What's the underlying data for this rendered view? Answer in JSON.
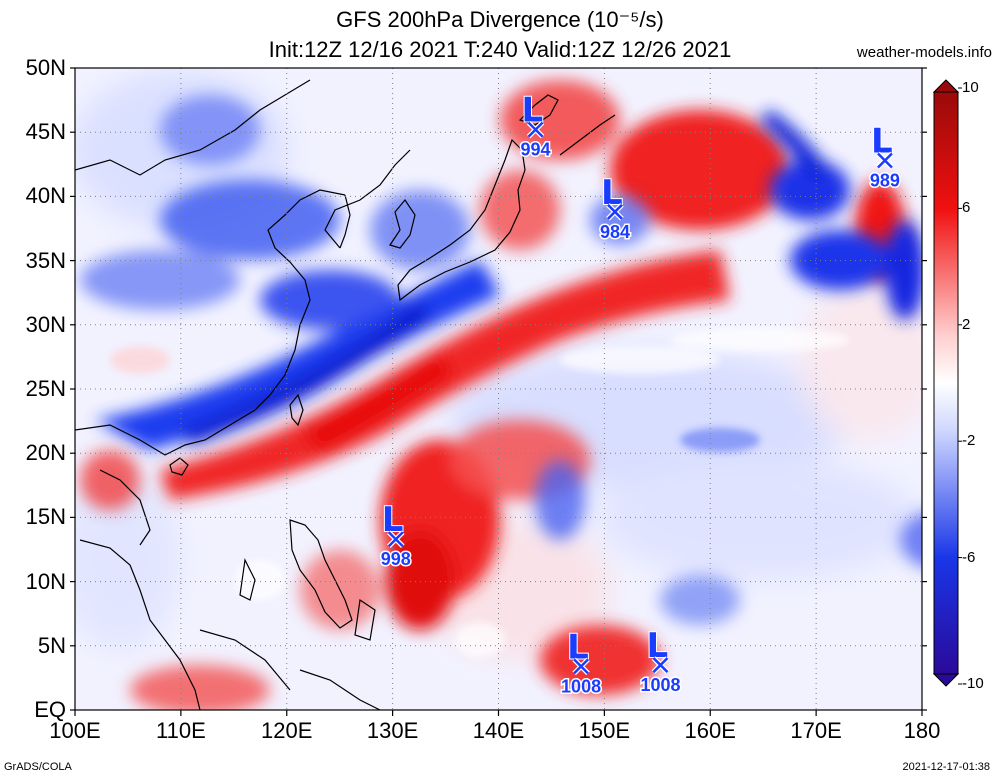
{
  "title": {
    "line1": "GFS 200hPa Divergence (10⁻⁵/s)",
    "line2": "Init:12Z 12/16 2021 T:240 Valid:12Z 12/26 2021"
  },
  "site": "weather-models.info",
  "footer": {
    "left": "GrADS/COLA",
    "right": "2021-12-17-01:38"
  },
  "map": {
    "lon_range": [
      100,
      180
    ],
    "lat_range": [
      0,
      50
    ],
    "lat_labels": [
      "EQ",
      "5N",
      "10N",
      "15N",
      "20N",
      "25N",
      "30N",
      "35N",
      "40N",
      "45N",
      "50N"
    ],
    "lon_labels": [
      "100E",
      "110E",
      "120E",
      "130E",
      "140E",
      "150E",
      "160E",
      "170E",
      "180"
    ],
    "gridlines": true
  },
  "colorbar": {
    "range": [
      -10,
      10
    ],
    "ticks": [
      {
        "value": 10,
        "label": "10"
      },
      {
        "value": 6,
        "label": "6"
      },
      {
        "value": 2,
        "label": "2"
      },
      {
        "value": -2,
        "label": "-2"
      },
      {
        "value": -6,
        "label": "-6"
      },
      {
        "value": -10,
        "label": "-10"
      }
    ],
    "colors": {
      "neg_max": "#2a0a9a",
      "neg": "#1a36e8",
      "zero": "#ffffff",
      "pos": "#f01010",
      "pos_max": "#9a0a0a"
    }
  },
  "lows": [
    {
      "lon": 143.5,
      "lat": 45.2,
      "pressure": "994"
    },
    {
      "lon": 151.0,
      "lat": 38.8,
      "pressure": "984"
    },
    {
      "lon": 176.5,
      "lat": 42.8,
      "pressure": "989"
    },
    {
      "lon": 130.3,
      "lat": 13.3,
      "pressure": "998"
    },
    {
      "lon": 147.8,
      "lat": 3.4,
      "pressure": "1008"
    },
    {
      "lon": 155.3,
      "lat": 3.5,
      "pressure": "1008"
    }
  ]
}
